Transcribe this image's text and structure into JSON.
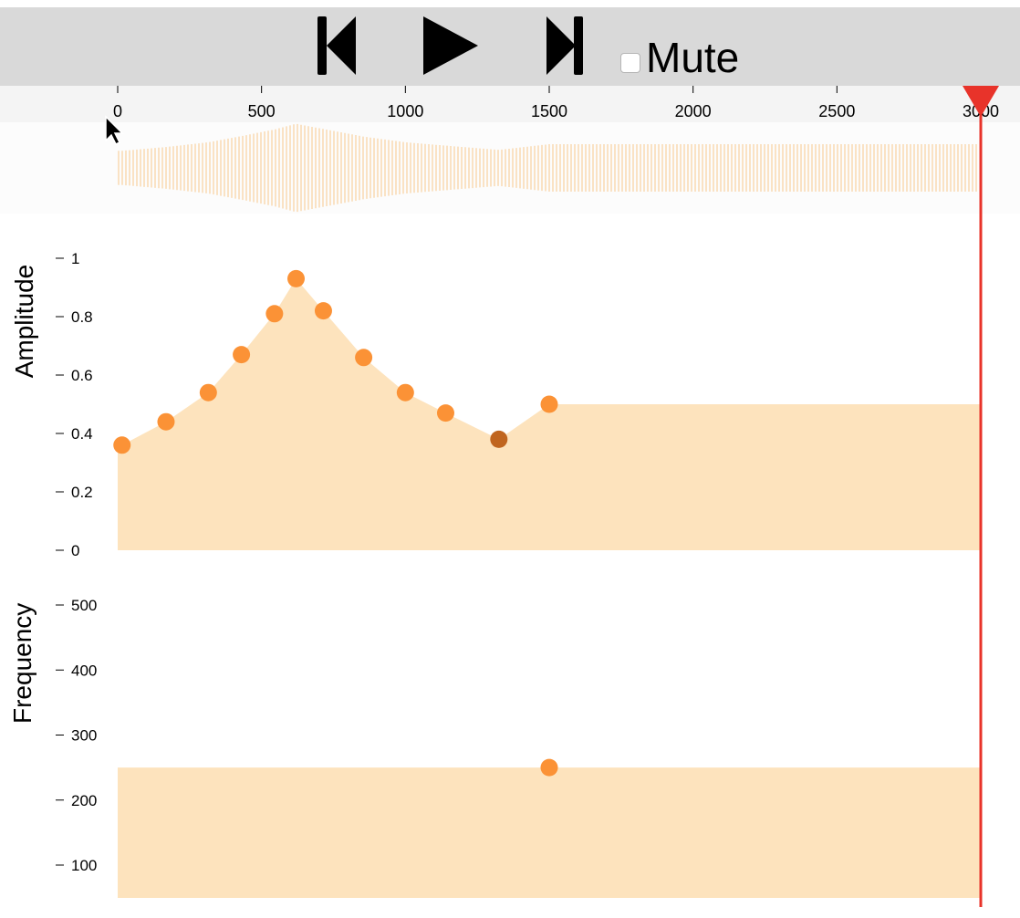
{
  "toolbar": {
    "buttons": [
      {
        "name": "skip-back-icon",
        "interactable": true
      },
      {
        "name": "play-icon",
        "interactable": true
      },
      {
        "name": "skip-forward-icon",
        "interactable": true
      }
    ],
    "mute_label": "Mute",
    "mute_checked": false
  },
  "timeline": {
    "ticks": [
      0,
      500,
      1000,
      1500,
      2000,
      2500,
      3000
    ],
    "tick_labels": [
      "0",
      "500",
      "1000",
      "1500",
      "2000",
      "2500",
      "3000"
    ],
    "playhead_value": 3000,
    "playhead_color": "#e8332a"
  },
  "colors": {
    "fill": "#fde3bd",
    "point": "#fb9236",
    "point_selected": "#c0651f",
    "waveform": "#f8c98c"
  },
  "chart_data": [
    {
      "type": "area",
      "ylabel": "Amplitude",
      "ylim": [
        0,
        1
      ],
      "y_ticks": [
        "0",
        "0.2",
        "0.4",
        "0.6",
        "0.8",
        "1"
      ],
      "x": [
        15,
        168,
        315,
        430,
        545,
        620,
        715,
        855,
        1000,
        1140,
        1325,
        1500
      ],
      "values": [
        0.36,
        0.44,
        0.54,
        0.67,
        0.81,
        0.93,
        0.82,
        0.66,
        0.54,
        0.47,
        0.38,
        0.5
      ],
      "selected_index": 10,
      "extend_to": 3000
    },
    {
      "type": "area",
      "ylabel": "Frequency",
      "ylim": [
        50,
        550
      ],
      "y_ticks": [
        "100",
        "200",
        "300",
        "400",
        "500"
      ],
      "x": [
        1500
      ],
      "values": [
        250
      ],
      "extend_from": 0,
      "extend_to": 3000
    }
  ]
}
